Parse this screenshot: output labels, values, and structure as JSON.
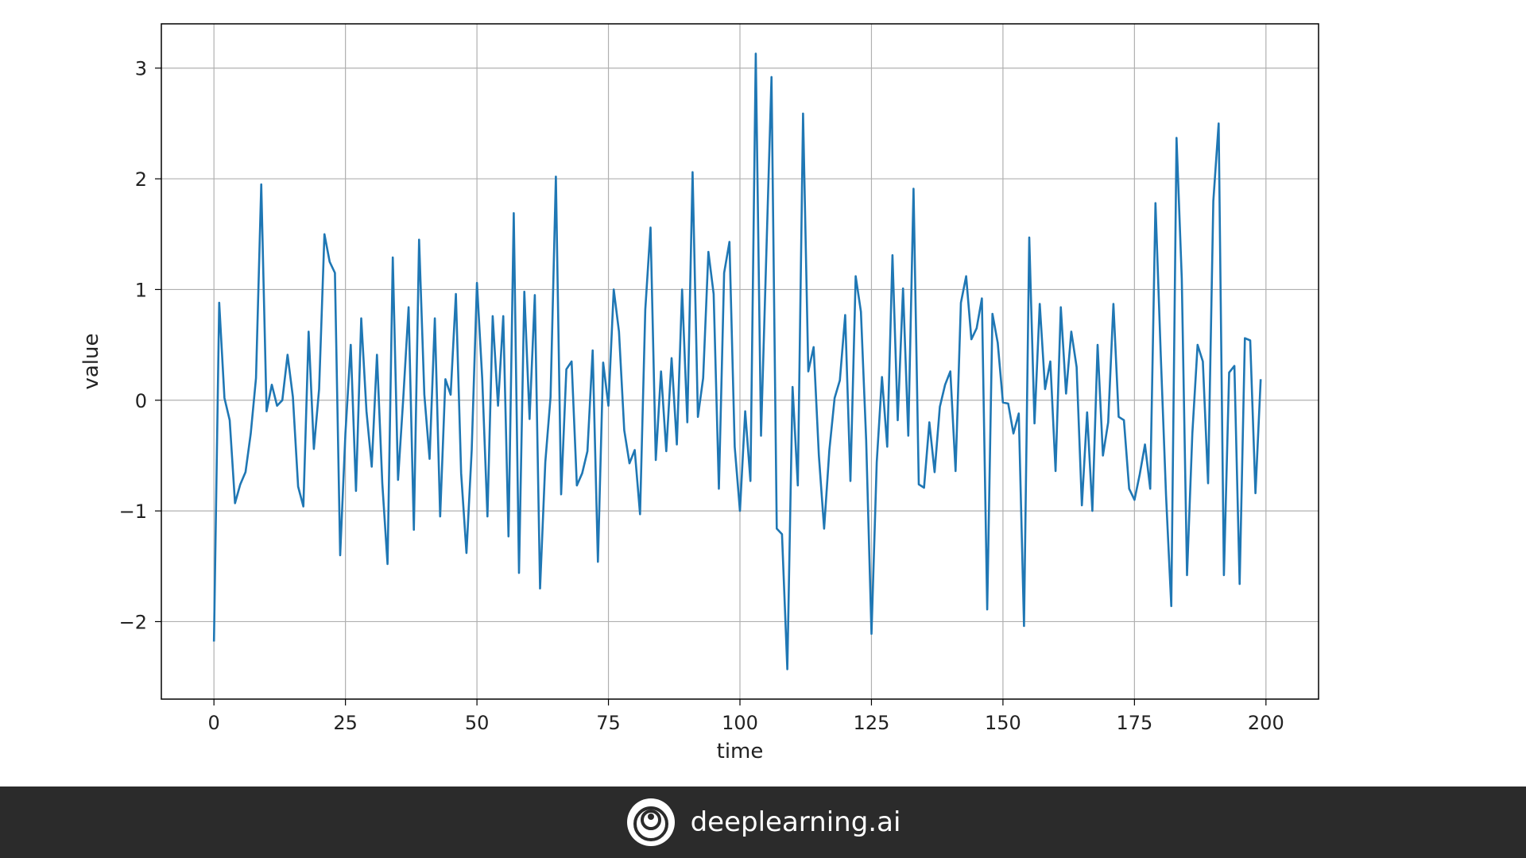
{
  "colors": {
    "line": "#1f77b4",
    "grid": "#b0b0b0",
    "axes": "#000000",
    "footer_bg": "#2b2b2b",
    "footer_text": "#ffffff"
  },
  "footer": {
    "brand": "deeplearning.ai",
    "logo_icon": "deeplearning-logo-icon"
  },
  "chart_data": {
    "type": "line",
    "title": "",
    "xlabel": "time",
    "ylabel": "value",
    "xlim": [
      -10,
      210
    ],
    "ylim": [
      -2.7,
      3.4
    ],
    "grid": true,
    "xticks": [
      0,
      25,
      50,
      75,
      100,
      125,
      150,
      175,
      200
    ],
    "xtick_labels": [
      "0",
      "25",
      "50",
      "75",
      "100",
      "125",
      "150",
      "175",
      "200"
    ],
    "yticks": [
      -2,
      -1,
      0,
      1,
      2,
      3
    ],
    "ytick_labels": [
      "−2",
      "−1",
      "0",
      "1",
      "2",
      "3"
    ],
    "series": [
      {
        "x": [
          0,
          1,
          2,
          3,
          4,
          5,
          6,
          7,
          8,
          9,
          10,
          11,
          12,
          13,
          14,
          15,
          16,
          17,
          18,
          19,
          20,
          21,
          22,
          23,
          24,
          25,
          26,
          27,
          28,
          29,
          30,
          31,
          32,
          33,
          34,
          35,
          36,
          37,
          38,
          39,
          40,
          41,
          42,
          43,
          44,
          45,
          46,
          47,
          48,
          49,
          50,
          51,
          52,
          53,
          54,
          55,
          56,
          57,
          58,
          59,
          60,
          61,
          62,
          63,
          64,
          65,
          66,
          67,
          68,
          69,
          70,
          71,
          72,
          73,
          74,
          75,
          76,
          77,
          78,
          79,
          80,
          81,
          82,
          83,
          84,
          85,
          86,
          87,
          88,
          89,
          90,
          91,
          92,
          93,
          94,
          95,
          96,
          97,
          98,
          99,
          100,
          101,
          102,
          103,
          104,
          105,
          106,
          107,
          108,
          109,
          110,
          111,
          112,
          113,
          114,
          115,
          116,
          117,
          118,
          119,
          120,
          121,
          122,
          123,
          124,
          125,
          126,
          127,
          128,
          129,
          130,
          131,
          132,
          133,
          134,
          135,
          136,
          137,
          138,
          139,
          140,
          141,
          142,
          143,
          144,
          145,
          146,
          147,
          148,
          149,
          150,
          151,
          152,
          153,
          154,
          155,
          156,
          157,
          158,
          159,
          160,
          161,
          162,
          163,
          164,
          165,
          166,
          167,
          168,
          169,
          170,
          171,
          172,
          173,
          174,
          175,
          176,
          177,
          178,
          179,
          180,
          181,
          182,
          183,
          184,
          185,
          186,
          187,
          188,
          189,
          190,
          191,
          192,
          193,
          194,
          195,
          196,
          197,
          198,
          199
        ],
        "values": [
          -2.18,
          0.88,
          0.02,
          -0.18,
          -0.93,
          -0.76,
          -0.65,
          -0.3,
          0.2,
          1.95,
          -0.1,
          0.14,
          -0.05,
          0.0,
          0.41,
          0.03,
          -0.78,
          -0.96,
          0.62,
          -0.44,
          0.1,
          1.5,
          1.25,
          1.15,
          -1.4,
          -0.3,
          0.5,
          -0.82,
          0.74,
          -0.1,
          -0.6,
          0.41,
          -0.75,
          -1.48,
          1.29,
          -0.72,
          0.02,
          0.84,
          -1.17,
          1.45,
          0.05,
          -0.53,
          0.74,
          -1.05,
          0.19,
          0.05,
          0.96,
          -0.66,
          -1.38,
          -0.45,
          1.06,
          0.2,
          -1.05,
          0.76,
          -0.05,
          0.76,
          -1.23,
          1.69,
          -1.56,
          0.98,
          -0.17,
          0.95,
          -1.7,
          -0.56,
          0.03,
          2.02,
          -0.85,
          0.28,
          0.35,
          -0.77,
          -0.66,
          -0.46,
          0.45,
          -1.46,
          0.34,
          -0.05,
          1.0,
          0.62,
          -0.27,
          -0.57,
          -0.45,
          -1.03,
          0.82,
          1.56,
          -0.54,
          0.26,
          -0.46,
          0.38,
          -0.4,
          1.0,
          -0.2,
          2.06,
          -0.15,
          0.2,
          1.34,
          0.96,
          -0.8,
          1.15,
          1.43,
          -0.42,
          -1.0,
          -0.1,
          -0.73,
          3.13,
          -0.32,
          1.3,
          2.92,
          -1.16,
          -1.21,
          -2.43,
          0.12,
          -0.77,
          2.59,
          0.26,
          0.48,
          -0.5,
          -1.16,
          -0.45,
          0.02,
          0.18,
          0.77,
          -0.73,
          1.12,
          0.8,
          -0.36,
          -2.11,
          -0.56,
          0.21,
          -0.42,
          1.31,
          -0.18,
          1.01,
          -0.32,
          1.91,
          -0.76,
          -0.79,
          -0.2,
          -0.65,
          -0.06,
          0.14,
          0.26,
          -0.64,
          0.88,
          1.12,
          0.55,
          0.65,
          0.92,
          -1.89,
          0.78,
          0.52,
          -0.02,
          -0.03,
          -0.3,
          -0.12,
          -2.04,
          1.47,
          -0.21,
          0.87,
          0.1,
          0.35,
          -0.64,
          0.84,
          0.06,
          0.62,
          0.3,
          -0.95,
          -0.11,
          -1.0,
          0.5,
          -0.5,
          -0.2,
          0.87,
          -0.15,
          -0.18,
          -0.8,
          -0.9,
          -0.67,
          -0.4,
          -0.8,
          1.78,
          0.4,
          -0.86,
          -1.86,
          2.37,
          1.1,
          -1.58,
          -0.3,
          0.5,
          0.35,
          -0.75,
          1.8,
          2.5,
          -1.58,
          0.25,
          0.31,
          -1.66,
          0.56,
          0.54,
          -0.84,
          0.19
        ]
      }
    ]
  }
}
